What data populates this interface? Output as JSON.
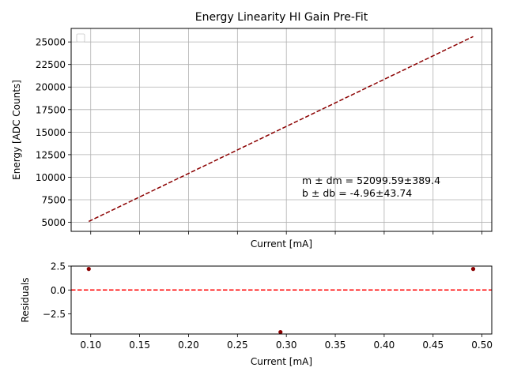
{
  "chart_data": [
    {
      "type": "line",
      "title": "Energy Linearity HI Gain Pre-Fit",
      "xlabel": "Current [mA]",
      "ylabel": "Energy [ADC Counts]",
      "xlim": [
        0.08,
        0.51
      ],
      "ylim": [
        4000,
        26500
      ],
      "xticks": [
        0.1,
        0.15,
        0.2,
        0.25,
        0.3,
        0.35,
        0.4,
        0.45,
        0.5
      ],
      "yticks": [
        5000,
        7500,
        10000,
        12500,
        15000,
        17500,
        20000,
        22500,
        25000
      ],
      "ytick_labels": [
        "5000",
        "7500",
        "10000",
        "12500",
        "15000",
        "17500",
        "20000",
        "22500",
        "25000"
      ],
      "show_xtick_labels": false,
      "grid": true,
      "legend": "top-left",
      "series": [
        {
          "style": "dashed",
          "color": "#8b0000",
          "x": [
            0.098,
            0.491
          ],
          "y": [
            5100,
            25600
          ]
        }
      ],
      "annotation": {
        "line1": "m ± dm = 52099.59±389.4",
        "line2": "b ± db = -4.96±43.74"
      }
    },
    {
      "type": "scatter",
      "title": "",
      "xlabel": "Current [mA]",
      "ylabel": "Residuals",
      "xlim": [
        0.08,
        0.51
      ],
      "ylim": [
        -4.6,
        2.5
      ],
      "xticks": [
        0.1,
        0.15,
        0.2,
        0.25,
        0.3,
        0.35,
        0.4,
        0.45,
        0.5
      ],
      "xtick_labels": [
        "0.10",
        "0.15",
        "0.20",
        "0.25",
        "0.30",
        "0.35",
        "0.40",
        "0.45",
        "0.50"
      ],
      "yticks": [
        2.5,
        0.0,
        -2.5
      ],
      "ytick_labels": [
        "2.5",
        "0.0",
        "−2.5"
      ],
      "grid": false,
      "series": [
        {
          "color": "#8b0000",
          "x": [
            0.098,
            0.294,
            0.491
          ],
          "y": [
            2.2,
            -4.4,
            2.2
          ]
        }
      ],
      "reference_line": {
        "y": 0.0,
        "style": "dashed",
        "color": "#ff0000"
      }
    }
  ]
}
